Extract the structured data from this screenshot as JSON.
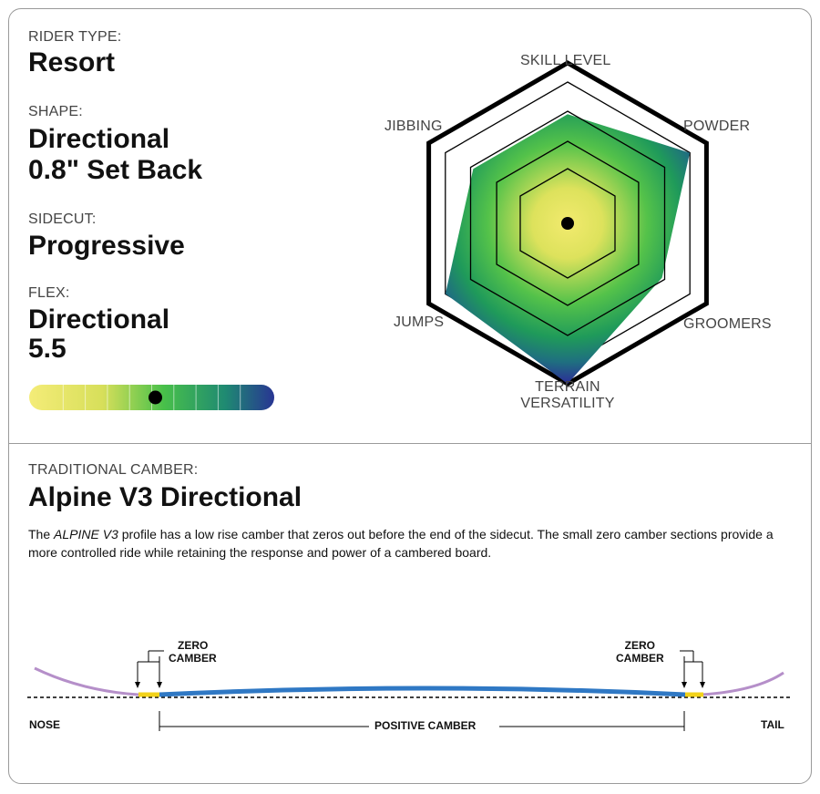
{
  "specs": {
    "rider_type_label": "RIDER TYPE:",
    "rider_type_value": "Resort",
    "shape_label": "SHAPE:",
    "shape_value_line1": "Directional",
    "shape_value_line2": "0.8\" Set Back",
    "sidecut_label": "SIDECUT:",
    "sidecut_value": "Progressive",
    "flex_label": "FLEX:",
    "flex_value_line1": "Directional",
    "flex_value_line2": "5.5",
    "flex_rating": 5.5,
    "flex_scale": [
      1,
      10
    ]
  },
  "radar": {
    "axes": {
      "skill_level": "SKILL LEVEL",
      "powder": "POWDER",
      "groomers": "GROOMERS",
      "terrain_versatility_line1": "TERRAIN",
      "terrain_versatility_line2": "VERSATILITY",
      "jumps": "JUMPS",
      "jibbing": "JIBBING"
    },
    "values": {
      "skill_level": 3.4,
      "powder": 4.4,
      "groomers": 3.4,
      "terrain_versatility": 5,
      "jumps": 4.4,
      "jibbing": 3.4
    },
    "max": 5
  },
  "camber": {
    "type_label": "TRADITIONAL CAMBER:",
    "profile_name": "Alpine V3 Directional",
    "description_lead": "The ",
    "description_emph": "ALPINE V3",
    "description_rest": " profile has a low rise camber that zeros out before the end of the sidecut. The small zero camber sections provide a more controlled ride while retaining the response and power of a cambered board.",
    "zero_camber_line1": "ZERO",
    "zero_camber_line2": "CAMBER",
    "positive_camber": "POSITIVE CAMBER",
    "nose": "NOSE",
    "tail": "TAIL"
  },
  "colors": {
    "yellow": "#f1e86a",
    "green": "#3dbb4a",
    "teal": "#1f7d7c",
    "navy": "#2a3592",
    "rocker": "#b58fc9",
    "camber_line": "#2f78c4",
    "zero": "#f2d21a"
  }
}
